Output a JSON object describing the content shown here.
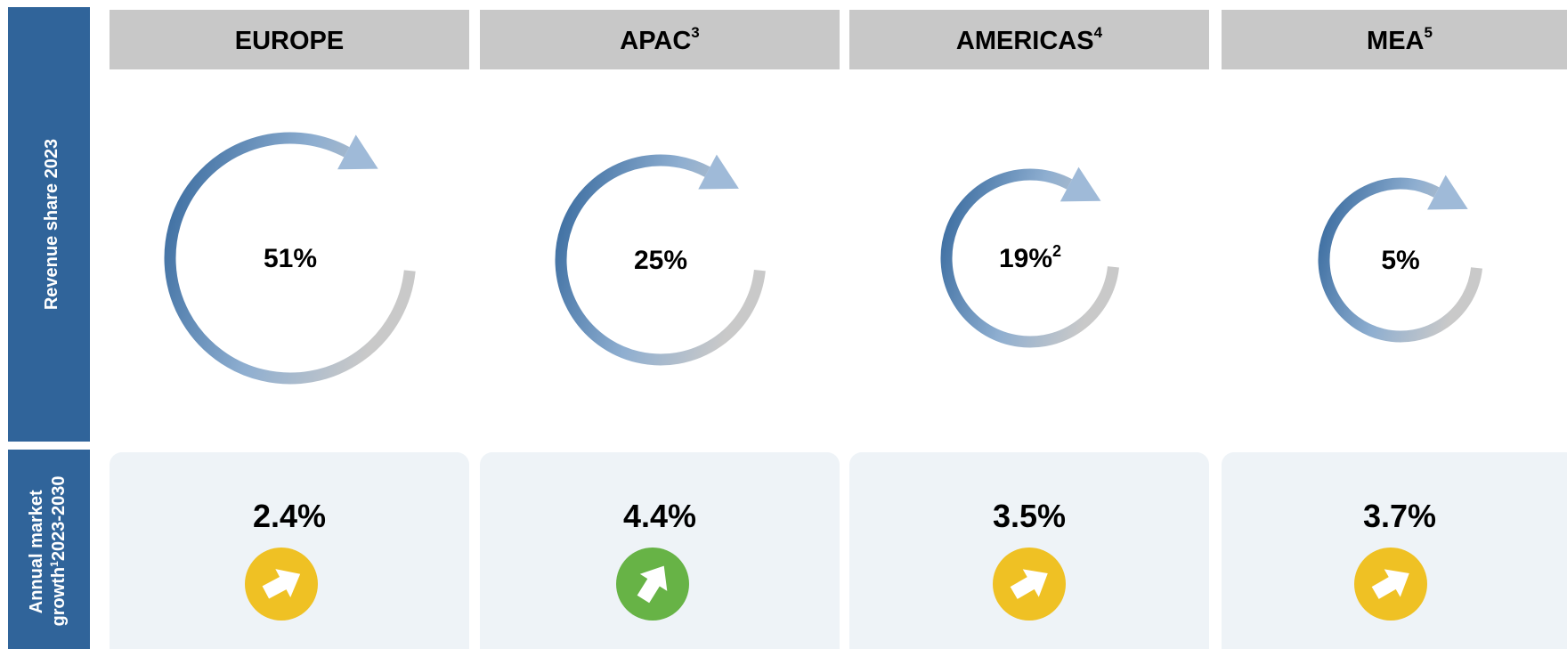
{
  "rows": [
    {
      "label": "Revenue share 2023"
    },
    {
      "label_lines": [
        "Annual market",
        "growth"
      ],
      "note": "1",
      "suffix": "2023-2030"
    }
  ],
  "regions": [
    {
      "name": "EUROPE",
      "share": "51%",
      "growth": "2.4%",
      "icon_color": "#efc124"
    },
    {
      "name": "APAC",
      "note": "3",
      "share": "25%",
      "growth": "4.4%",
      "icon_color": "#67b346"
    },
    {
      "name": "AMERICAS",
      "note": "4",
      "share": "19%",
      "share_note": "2",
      "growth": "3.5%",
      "icon_color": "#efc124"
    },
    {
      "name": "MEA",
      "note": "5",
      "share": "5%",
      "growth": "3.7%",
      "icon_color": "#efc124"
    }
  ]
}
